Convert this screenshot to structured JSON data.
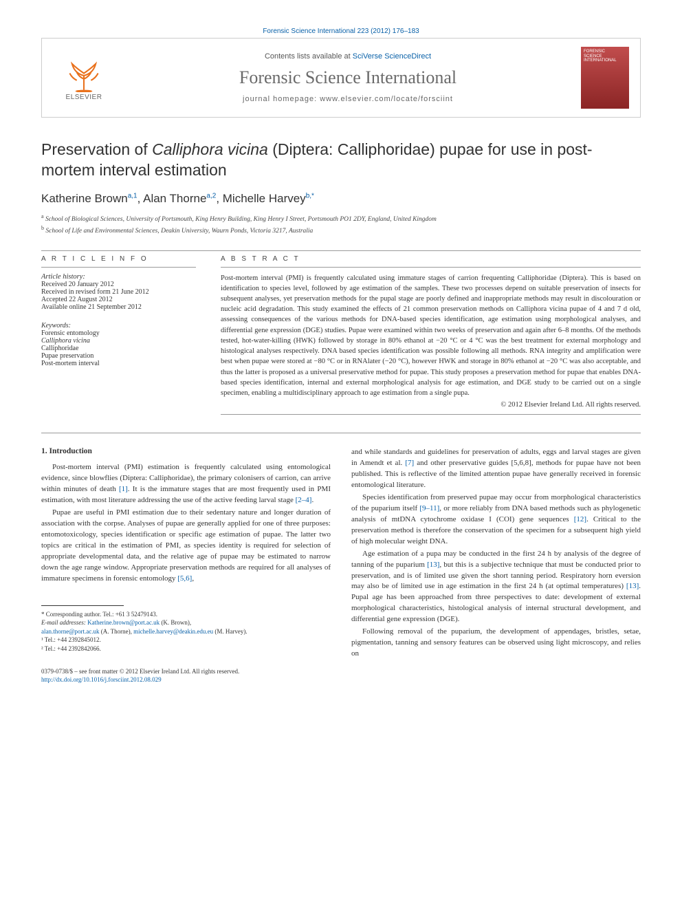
{
  "header": {
    "citation_link_text": "Forensic Science International 223 (2012) 176–183",
    "contents_line_prefix": "Contents lists available at ",
    "contents_link": "SciVerse ScienceDirect",
    "journal_name": "Forensic Science International",
    "homepage_prefix": "journal homepage: ",
    "homepage_url": "www.elsevier.com/locate/forsciint",
    "publisher_logo_text": "ELSEVIER",
    "cover_text_1": "FORENSIC",
    "cover_text_2": "SCIENCE",
    "cover_text_3": "INTERNATIONAL"
  },
  "article": {
    "title_pre": "Preservation of ",
    "title_italic": "Calliphora vicina",
    "title_post": " (Diptera: Calliphoridae) pupae for use in post-mortem interval estimation",
    "authors_html": "Katherine Brown",
    "author1_sup": "a,1",
    "author2": ", Alan Thorne",
    "author2_sup": "a,2",
    "author3": ", Michelle Harvey",
    "author3_sup": "b,*",
    "affiliation_a": "School of Biological Sciences, University of Portsmouth, King Henry Building, King Henry I Street, Portsmouth PO1 2DY, England, United Kingdom",
    "affiliation_b": "School of Life and Environmental Sciences, Deakin University, Waurn Ponds, Victoria 3217, Australia"
  },
  "labels": {
    "article_info": "A R T I C L E   I N F O",
    "abstract": "A B S T R A C T",
    "history": "Article history:",
    "keywords": "Keywords:"
  },
  "history": {
    "received": "Received 20 January 2012",
    "revised": "Received in revised form 21 June 2012",
    "accepted": "Accepted 22 August 2012",
    "online": "Available online 21 September 2012"
  },
  "keywords": [
    "Forensic entomology",
    "Calliphora vicina",
    "Calliphoridae",
    "Pupae preservation",
    "Post-mortem interval"
  ],
  "abstract": "Post-mortem interval (PMI) is frequently calculated using immature stages of carrion frequenting Calliphoridae (Diptera). This is based on identification to species level, followed by age estimation of the samples. These two processes depend on suitable preservation of insects for subsequent analyses, yet preservation methods for the pupal stage are poorly defined and inappropriate methods may result in discolouration or nucleic acid degradation. This study examined the effects of 21 common preservation methods on Calliphora vicina pupae of 4 and 7 d old, assessing consequences of the various methods for DNA-based species identification, age estimation using morphological analyses, and differential gene expression (DGE) studies. Pupae were examined within two weeks of preservation and again after 6–8 months. Of the methods tested, hot-water-killing (HWK) followed by storage in 80% ethanol at −20 °C or 4 °C was the best treatment for external morphology and histological analyses respectively. DNA based species identification was possible following all methods. RNA integrity and amplification were best when pupae were stored at −80 °C or in RNAlater (−20 °C), however HWK and storage in 80% ethanol at −20 °C was also acceptable, and thus the latter is proposed as a universal preservative method for pupae. This study proposes a preservation method for pupae that enables DNA-based species identification, internal and external morphological analysis for age estimation, and DGE study to be carried out on a single specimen, enabling a multidisciplinary approach to age estimation from a single pupa.",
  "copyright": "© 2012 Elsevier Ireland Ltd. All rights reserved.",
  "body": {
    "section_1": "1. Introduction",
    "p1": "Post-mortem interval (PMI) estimation is frequently calculated using entomological evidence, since blowflies (Diptera: Calliphoridae), the primary colonisers of carrion, can arrive within minutes of death [1]. It is the immature stages that are most frequently used in PMI estimation, with most literature addressing the use of the active feeding larval stage [2–4].",
    "p2": "Pupae are useful in PMI estimation due to their sedentary nature and longer duration of association with the corpse. Analyses of pupae are generally applied for one of three purposes: entomotoxicology, species identification or specific age estimation of pupae. The latter two topics are critical in the estimation of PMI, as species identity is required for selection of appropriate developmental data, and the relative age of pupae may be estimated to narrow down the age range window. Appropriate preservation methods are required for all analyses of immature specimens in forensic entomology [5,6],",
    "p3": "and while standards and guidelines for preservation of adults, eggs and larval stages are given in Amendt et al. [7] and other preservative guides [5,6,8], methods for pupae have not been published. This is reflective of the limited attention pupae have generally received in forensic entomological literature.",
    "p4": "Species identification from preserved pupae may occur from morphological characteristics of the puparium itself [9–11], or more reliably from DNA based methods such as phylogenetic analysis of mtDNA cytochrome oxidase I (COI) gene sequences [12]. Critical to the preservation method is therefore the conservation of the specimen for a subsequent high yield of high molecular weight DNA.",
    "p5": "Age estimation of a pupa may be conducted in the first 24 h by analysis of the degree of tanning of the puparium [13], but this is a subjective technique that must be conducted prior to preservation, and is of limited use given the short tanning period. Respiratory horn eversion may also be of limited use in age estimation in the first 24 h (at optimal temperatures) [13]. Pupal age has been approached from three perspectives to date: development of external morphological characteristics, histological analysis of internal structural development, and differential gene expression (DGE).",
    "p6": "Following removal of the puparium, the development of appendages, bristles, setae, pigmentation, tanning and sensory features can be observed using light microscopy, and relies on"
  },
  "footer": {
    "corresponding": "* Corresponding author. Tel.: +61 3 52479143.",
    "email_label": "E-mail addresses: ",
    "email1": "Katherine.brown@port.ac.uk",
    "email1_name": " (K. Brown),",
    "email2": "alan.thorne@port.ac.uk",
    "email2_name": " (A. Thorne), ",
    "email3": "michelle.harvey@deakin.edu.eu",
    "email3_name": " (M. Harvey).",
    "tel1": "¹ Tel.: +44 2392845012.",
    "tel2": "² Tel.: +44 2392842066."
  },
  "bottom": {
    "issn": "0379-0738/$ – see front matter © 2012 Elsevier Ireland Ltd. All rights reserved.",
    "doi": "http://dx.doi.org/10.1016/j.forsciint.2012.08.029"
  },
  "colors": {
    "link": "#0860a8",
    "elsevier_orange": "#e9711c",
    "cover_red_top": "#c14d4d",
    "cover_red_bot": "#8b2525"
  }
}
